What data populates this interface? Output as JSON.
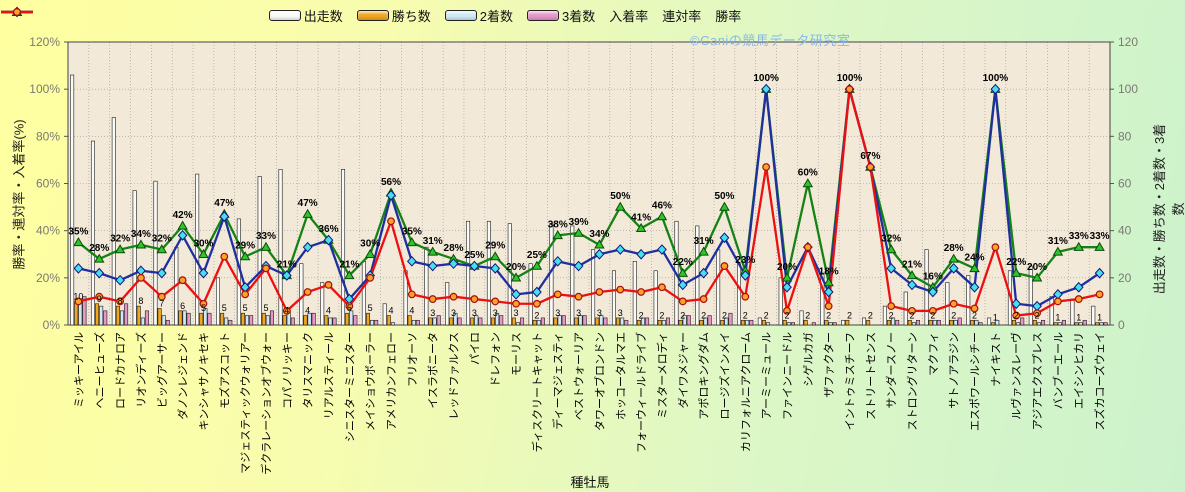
{
  "watermark": "©Caniの競馬データ研究室",
  "axes": {
    "left_title": "勝率・連対率・入着率(%)",
    "right_title": "出走数・勝ち数・2着数・3着数",
    "x_title": "種牡馬",
    "left_ticks": [
      "0%",
      "20%",
      "40%",
      "60%",
      "80%",
      "100%",
      "120%"
    ],
    "right_ticks": [
      "0",
      "20",
      "40",
      "60",
      "80",
      "100",
      "120"
    ]
  },
  "legend": {
    "items": [
      {
        "key": "starts",
        "label": "出走数",
        "type": "bar"
      },
      {
        "key": "wins",
        "label": "勝ち数",
        "type": "bar"
      },
      {
        "key": "seconds",
        "label": "2着数",
        "type": "bar"
      },
      {
        "key": "thirds",
        "label": "3着数",
        "type": "bar"
      },
      {
        "key": "place",
        "label": "入着率",
        "type": "line",
        "marker": "triangle"
      },
      {
        "key": "quinella",
        "label": "連対率",
        "type": "line",
        "marker": "diamond"
      },
      {
        "key": "win",
        "label": "勝率",
        "type": "line",
        "marker": "circle"
      }
    ]
  },
  "chart_data": {
    "type": "bar+line combo",
    "left_axis_range": [
      0,
      120
    ],
    "right_axis_range": [
      0,
      120
    ],
    "grid": "dotted",
    "categories": [
      "ミッキーアイル",
      "ヘニーヒューズ",
      "ロードカナロア",
      "リオンディーズ",
      "ビッグアーサー",
      "ダノンレジェンド",
      "キンシャサノキセキ",
      "モズアスコット",
      "マジェスティックウォリアー",
      "デクラレーションオブウォー",
      "コパノリッキー",
      "タリスマニック",
      "リアルスティール",
      "シニスターミニスター",
      "メイショウボーラー",
      "アメリカンフェロー",
      "フリオーソ",
      "イスラボニータ",
      "レッドファルクス",
      "パイロ",
      "ドレフォン",
      "モーリス",
      "ディスクリートキャット",
      "ディーマジェスティ",
      "ベストウォーリア",
      "タワーオブロンドン",
      "ホッコータルマエ",
      "フォーウィールドライブ",
      "ミスターメロディ",
      "ダイワメジャー",
      "アポロキングダム",
      "ロージズインメイ",
      "カリフォルニアクローム",
      "アーミーミュール",
      "ファインニードル",
      "シゲルカガ",
      "ザファクター",
      "イントゥミスチーフ",
      "ストリートセンス",
      "サンダースノー",
      "ストロングリターン",
      "マクフィ",
      "サトノアラジン",
      "エスポワールシチー",
      "ナイキスト",
      "ルヴァンスレーヴ",
      "アジアエクスプレス",
      "バンブーエール",
      "エイシンヒカリ",
      "スズカコーズウェイ"
    ],
    "series": [
      {
        "name": "出走数",
        "kind": "bar",
        "axis": "right",
        "values": [
          106,
          78,
          88,
          57,
          61,
          33,
          64,
          20,
          45,
          63,
          66,
          26,
          18,
          66,
          27,
          9,
          23,
          33,
          18,
          44,
          44,
          43,
          26,
          43,
          42,
          32,
          23,
          27,
          23,
          44,
          42,
          32,
          26,
          3,
          20,
          6,
          22,
          2,
          3,
          8,
          14,
          32,
          18,
          21,
          3,
          23,
          25,
          12,
          11,
          8
        ]
      },
      {
        "name": "勝ち数",
        "kind": "bar",
        "axis": "right",
        "values": [
          10,
          9,
          8,
          8,
          7,
          6,
          5,
          5,
          5,
          5,
          4,
          4,
          4,
          5,
          5,
          4,
          4,
          3,
          3,
          3,
          3,
          3,
          2,
          3,
          3,
          3,
          3,
          2,
          2,
          2,
          2,
          2,
          2,
          2,
          2,
          2,
          2,
          2,
          2,
          2,
          2,
          2,
          2,
          2,
          1,
          2,
          2,
          1,
          1,
          1
        ]
      },
      {
        "name": "2着数",
        "kind": "bar",
        "axis": "right",
        "values": [
          10,
          8,
          6,
          3,
          4,
          6,
          7,
          3,
          4,
          4,
          6,
          5,
          3,
          6,
          2,
          1,
          2,
          3,
          5,
          4,
          5,
          1,
          2,
          4,
          4,
          4,
          3,
          3,
          2,
          4,
          3,
          3,
          2,
          1,
          1,
          0,
          1,
          0,
          0,
          3,
          1,
          2,
          2,
          2,
          2,
          1,
          1,
          1,
          1,
          1
        ]
      },
      {
        "name": "3着数",
        "kind": "bar",
        "axis": "right",
        "values": [
          12,
          6,
          9,
          6,
          2,
          5,
          5,
          2,
          4,
          6,
          3,
          5,
          3,
          4,
          2,
          0,
          2,
          4,
          3,
          3,
          4,
          3,
          3,
          4,
          4,
          3,
          2,
          3,
          3,
          4,
          4,
          5,
          2,
          0,
          1,
          1,
          1,
          0,
          0,
          2,
          2,
          2,
          3,
          1,
          0,
          3,
          2,
          2,
          2,
          1
        ]
      },
      {
        "name": "入着率",
        "kind": "line",
        "axis": "left",
        "values": [
          35,
          28,
          32,
          34,
          32,
          42,
          30,
          47,
          29,
          33,
          21,
          47,
          36,
          21,
          30,
          56,
          35,
          31,
          28,
          25,
          29,
          20,
          25,
          38,
          39,
          34,
          50,
          41,
          46,
          22,
          31,
          50,
          23,
          100,
          20,
          60,
          18,
          100,
          67,
          32,
          21,
          16,
          28,
          24,
          100,
          22,
          20,
          31,
          33,
          33
        ]
      },
      {
        "name": "連対率",
        "kind": "line",
        "axis": "left",
        "values": [
          24,
          22,
          19,
          23,
          22,
          38,
          22,
          46,
          16,
          25,
          21,
          33,
          36,
          11,
          21,
          55,
          27,
          25,
          26,
          25,
          24,
          13,
          14,
          27,
          25,
          30,
          32,
          30,
          32,
          17,
          22,
          37,
          21,
          100,
          16,
          33,
          14,
          100,
          67,
          24,
          17,
          14,
          24,
          16,
          100,
          9,
          8,
          13,
          16,
          22
        ]
      },
      {
        "name": "勝率",
        "kind": "line",
        "axis": "left",
        "values": [
          10,
          12,
          10,
          20,
          12,
          19,
          9,
          29,
          13,
          24,
          6,
          14,
          17,
          8,
          20,
          44,
          13,
          11,
          12,
          11,
          10,
          9,
          9,
          13,
          12,
          14,
          15,
          14,
          16,
          10,
          11,
          25,
          12,
          67,
          6,
          33,
          8,
          100,
          67,
          8,
          6,
          6,
          9,
          7,
          33,
          4,
          5,
          10,
          11,
          13
        ]
      }
    ],
    "rate_labels": [
      "35%",
      "28%",
      "32%",
      "34%",
      "32%",
      "42%",
      "30%",
      "47%",
      "29%",
      "33%",
      "21%",
      "47%",
      "36%",
      "21%",
      "30%",
      "56%",
      "35%",
      "31%",
      "28%",
      "25%",
      "29%",
      "20%",
      "25%",
      "38%",
      "39%",
      "34%",
      "50%",
      "41%",
      "46%",
      "22%",
      "31%",
      "50%",
      "23%",
      "100%",
      "20%",
      "60%",
      "18%",
      "100%",
      "67%",
      "32%",
      "21%",
      "16%",
      "28%",
      "24%",
      "100%",
      "22%",
      "20%",
      "31%",
      "33%",
      "33%"
    ],
    "colors": {
      "starts": "#fafaf6",
      "wins": "#f2a71f",
      "seconds": "#cfe9f5",
      "thirds": "#e897c9",
      "place_line": "#158215",
      "place_marker": "#2ec42e",
      "quinella_line": "#1f2fa0",
      "quinella_marker": "#45e0ec",
      "win_line": "#ee1010",
      "win_marker": "#ffa126",
      "plot_bg": "#f2e9d8",
      "grid": "#9a9a9a",
      "bar_edge": "#1a1a1a",
      "tick_text": "#7a7a72",
      "watermark": "#86b6ea"
    }
  }
}
